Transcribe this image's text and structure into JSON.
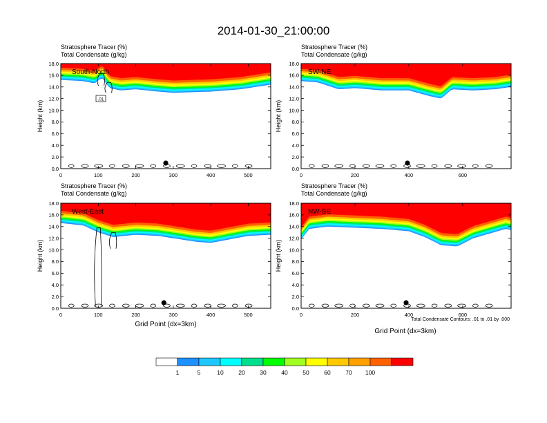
{
  "title": "2014-01-30_21:00:00",
  "panel_header": {
    "line1": "Stratosphere Tracer   (%)",
    "line2": "Total Condensate   (g/kg)"
  },
  "ylabel": "Height (km)",
  "xlabel": "Grid Point (dx=3km)",
  "contour_note": "Total Condensate Contours: .01 to .01 by .000",
  "contour_label": ".01",
  "colorbar": {
    "labels": [
      "1",
      "5",
      "10",
      "20",
      "30",
      "40",
      "50",
      "60",
      "70",
      "100"
    ],
    "colors": [
      "#ffffff",
      "#1e90ff",
      "#1ec8ff",
      "#00ffff",
      "#00e08c",
      "#00ff00",
      "#a0ff20",
      "#ffff00",
      "#ffc800",
      "#ffa000",
      "#ff6000",
      "#ff0000"
    ]
  },
  "chart_data": [
    {
      "type": "heatmap",
      "name": "South-North",
      "xlim": [
        0,
        560
      ],
      "ylim": [
        0,
        18
      ],
      "xticks": [
        "0",
        "100",
        "200",
        "300",
        "400",
        "500"
      ],
      "yticks": [
        "0.0",
        "2.0",
        "4.0",
        "6.0",
        "8.0",
        "10.0",
        "12.0",
        "14.0",
        "16.0",
        "18.0"
      ],
      "tropopause_km": [
        [
          0,
          15.2
        ],
        [
          60,
          15.0
        ],
        [
          90,
          14.6
        ],
        [
          110,
          15.6
        ],
        [
          130,
          13.8
        ],
        [
          160,
          13.4
        ],
        [
          200,
          13.6
        ],
        [
          260,
          13.2
        ],
        [
          300,
          13.0
        ],
        [
          400,
          13.2
        ],
        [
          480,
          13.6
        ],
        [
          540,
          14.2
        ],
        [
          560,
          14.4
        ]
      ],
      "marker_x": 280,
      "cloud_columns": [
        [
          108,
          14.2
        ],
        [
          128,
          13.0
        ]
      ]
    },
    {
      "type": "heatmap",
      "name": "SW-NE",
      "xlim": [
        0,
        780
      ],
      "ylim": [
        0,
        18
      ],
      "xticks": [
        "0",
        "200",
        "400",
        "600"
      ],
      "yticks": [
        "0.0",
        "2.0",
        "4.0",
        "6.0",
        "8.0",
        "10.0",
        "12.0",
        "14.0",
        "16.0",
        "18.0"
      ],
      "tropopause_km": [
        [
          0,
          15.0
        ],
        [
          60,
          14.8
        ],
        [
          140,
          13.6
        ],
        [
          200,
          13.8
        ],
        [
          300,
          13.4
        ],
        [
          400,
          13.4
        ],
        [
          480,
          12.4
        ],
        [
          520,
          12.0
        ],
        [
          560,
          13.6
        ],
        [
          640,
          13.4
        ],
        [
          720,
          13.6
        ],
        [
          780,
          14.0
        ]
      ],
      "marker_x": 395,
      "cloud_columns": []
    },
    {
      "type": "heatmap",
      "name": "West-East",
      "xlim": [
        0,
        560
      ],
      "ylim": [
        0,
        18
      ],
      "xticks": [
        "0",
        "100",
        "200",
        "300",
        "400",
        "500"
      ],
      "yticks": [
        "0.0",
        "2.0",
        "4.0",
        "6.0",
        "8.0",
        "10.0",
        "12.0",
        "14.0",
        "16.0",
        "18.0"
      ],
      "tropopause_km": [
        [
          0,
          14.6
        ],
        [
          60,
          14.2
        ],
        [
          100,
          13.0
        ],
        [
          140,
          12.2
        ],
        [
          200,
          12.6
        ],
        [
          260,
          12.4
        ],
        [
          300,
          12.0
        ],
        [
          360,
          11.4
        ],
        [
          400,
          11.2
        ],
        [
          450,
          11.8
        ],
        [
          500,
          12.4
        ],
        [
          560,
          12.6
        ]
      ],
      "marker_x": 275,
      "cloud_columns": [
        [
          100,
          4.4
        ],
        [
          140,
          10.2
        ]
      ]
    },
    {
      "type": "heatmap",
      "name": "NW-SE",
      "xlim": [
        0,
        780
      ],
      "ylim": [
        0,
        18
      ],
      "xticks": [
        "0",
        "200",
        "400",
        "600"
      ],
      "yticks": [
        "0.0",
        "2.0",
        "4.0",
        "6.0",
        "8.0",
        "10.0",
        "12.0",
        "14.0",
        "16.0",
        "18.0"
      ],
      "tropopause_km": [
        [
          0,
          11.8
        ],
        [
          30,
          13.6
        ],
        [
          100,
          14.0
        ],
        [
          200,
          13.8
        ],
        [
          300,
          13.6
        ],
        [
          400,
          13.2
        ],
        [
          460,
          12.2
        ],
        [
          520,
          10.8
        ],
        [
          580,
          10.6
        ],
        [
          640,
          12.0
        ],
        [
          700,
          12.8
        ],
        [
          760,
          13.6
        ],
        [
          780,
          13.4
        ]
      ],
      "marker_x": 390,
      "cloud_columns": []
    }
  ]
}
